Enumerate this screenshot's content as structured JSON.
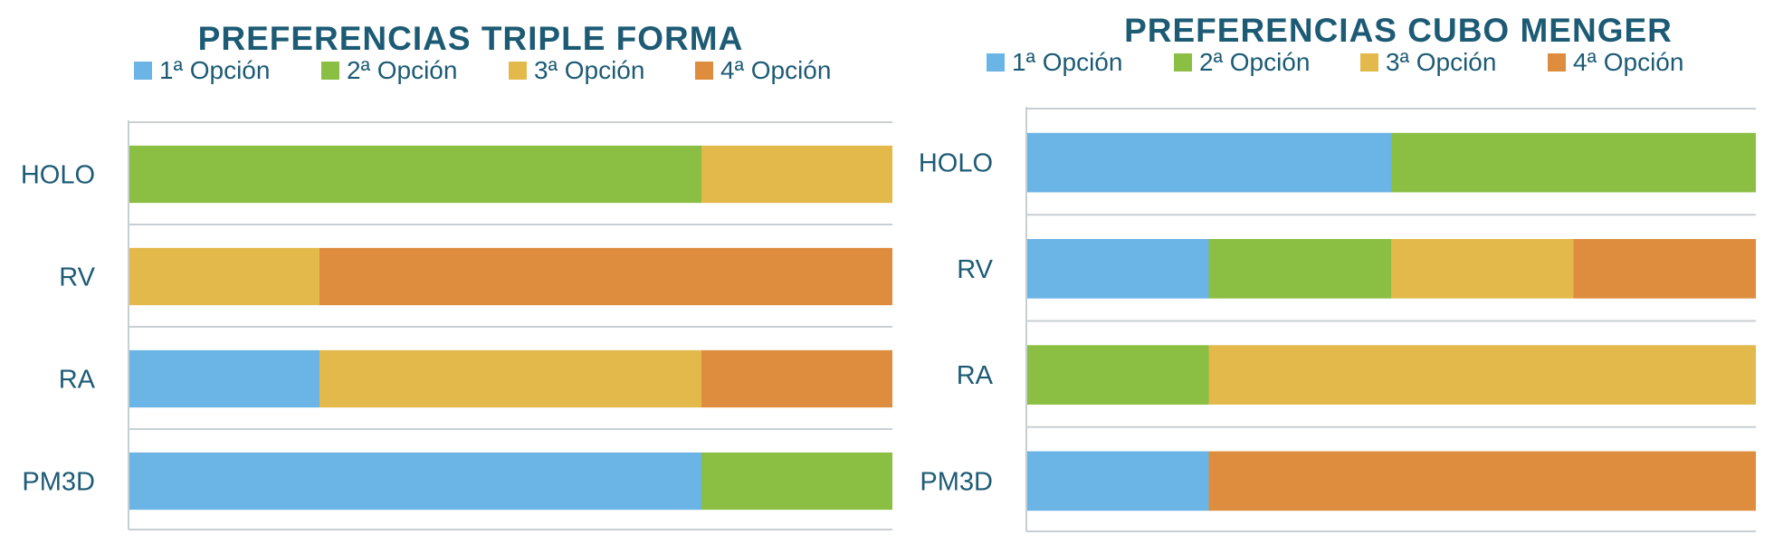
{
  "colors": {
    "option1": "#6bb5e6",
    "option2": "#8abf43",
    "option3": "#e2b94a",
    "option4": "#de8d3e",
    "text": "#1d5b75",
    "axis": "#c8cfd3"
  },
  "chart_data": [
    {
      "type": "bar",
      "stacked": true,
      "orientation": "horizontal",
      "title": "PREFERENCIAS TRIPLE FORMA",
      "legend_position": "top",
      "categories": [
        "HOLO",
        "RV",
        "RA",
        "PM3D"
      ],
      "xlim": [
        0,
        4
      ],
      "grid": false,
      "series": [
        {
          "name": "1ª Opción",
          "values": [
            0,
            0,
            1,
            3
          ]
        },
        {
          "name": "2ª Opción",
          "values": [
            3,
            0,
            0,
            1
          ]
        },
        {
          "name": "3ª Opción",
          "values": [
            1,
            1,
            2,
            0
          ]
        },
        {
          "name": "4ª Opción",
          "values": [
            0,
            3,
            1,
            0
          ]
        }
      ]
    },
    {
      "type": "bar",
      "stacked": true,
      "orientation": "horizontal",
      "title": "PREFERENCIAS CUBO MENGER",
      "legend_position": "top",
      "categories": [
        "HOLO",
        "RV",
        "RA",
        "PM3D"
      ],
      "xlim": [
        0,
        4
      ],
      "grid": false,
      "series": [
        {
          "name": "1ª Opción",
          "values": [
            2,
            1,
            0,
            1
          ]
        },
        {
          "name": "2ª Opción",
          "values": [
            2,
            1,
            1,
            0
          ]
        },
        {
          "name": "3ª Opción",
          "values": [
            0,
            1,
            3,
            0
          ]
        },
        {
          "name": "4ª Opción",
          "values": [
            0,
            1,
            0,
            3
          ]
        }
      ]
    }
  ]
}
